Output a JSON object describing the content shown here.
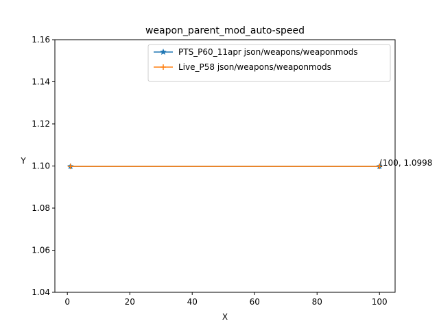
{
  "chart_data": {
    "type": "line",
    "title": "weapon_parent_mod_auto-speed",
    "xlabel": "X",
    "ylabel": "Y",
    "xlim": [
      -4.0,
      105.0
    ],
    "ylim": [
      1.04,
      1.16
    ],
    "x_ticks": [
      0,
      20,
      40,
      60,
      80,
      100
    ],
    "x_tick_labels": [
      "0",
      "20",
      "40",
      "60",
      "80",
      "100"
    ],
    "y_ticks": [
      1.04,
      1.06,
      1.08,
      1.1,
      1.12,
      1.14,
      1.16
    ],
    "y_tick_labels": [
      "1.04",
      "1.06",
      "1.08",
      "1.10",
      "1.12",
      "1.14",
      "1.16"
    ],
    "grid": false,
    "legend_position": "top-right",
    "series": [
      {
        "name": "PTS_P60_11apr json/weapons/weaponmods",
        "color": "#1f77b4",
        "marker": "star",
        "x": [
          1,
          100
        ],
        "y": [
          1.0998,
          1.0998
        ]
      },
      {
        "name": "Live_P58 json/weapons/weaponmods",
        "color": "#ff7f0e",
        "marker": "plus",
        "x": [
          1,
          100
        ],
        "y": [
          1.0998,
          1.0998
        ]
      }
    ],
    "annotations": [
      {
        "text": "(100, 1.0998",
        "x": 100,
        "y": 1.0998
      }
    ]
  }
}
